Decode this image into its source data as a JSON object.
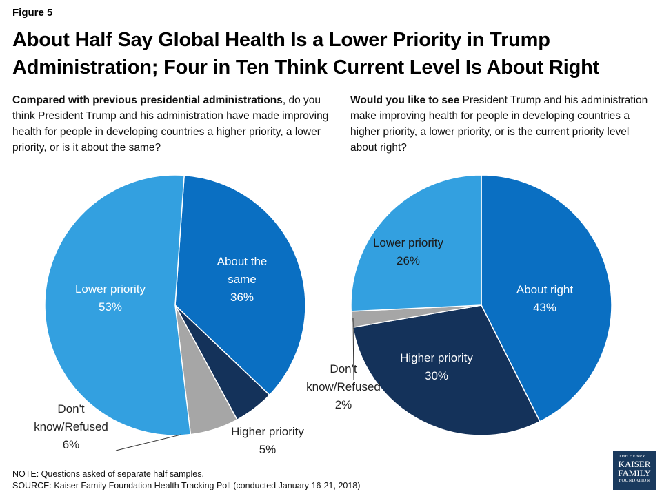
{
  "figure_label": "Figure 5",
  "title_line1": "About Half Say Global Health Is a Lower Priority in Trump",
  "title_line2": "Administration; Four in Ten Think Current Level Is About Right",
  "left_question": {
    "bold": "Compared with previous presidential administrations",
    "rest": ", do you think President Trump and his administration have made improving health for people in developing countries a higher priority, a lower priority, or is it about the same?"
  },
  "right_question": {
    "bold": "Would you like to see",
    "rest": " President Trump and his administration make improving health for people in developing countries a higher priority, a lower priority, or is the current priority level about right?"
  },
  "notes": {
    "note": "NOTE: Questions asked of separate half samples.",
    "source": "SOURCE: Kaiser Family Foundation Health Tracking Poll (conducted January 16-21, 2018)"
  },
  "logo": {
    "line1": "THE HENRY J.",
    "line2": "KAISER",
    "line3": "FAMILY",
    "line4": "FOUNDATION"
  },
  "colors": {
    "light_blue": "#33a0e0",
    "medium_blue": "#0a6fc2",
    "dark_navy": "#14325a",
    "gray": "#a6a6a6"
  },
  "chart_data": [
    {
      "type": "pie",
      "slices": [
        {
          "label": "About the same",
          "label_lines": [
            "About the",
            "same"
          ],
          "value_text": "36%",
          "value": 36,
          "color": "#0a6fc2"
        },
        {
          "label": "Higher priority",
          "label_lines": [
            "Higher priority"
          ],
          "value_text": "5%",
          "value": 5,
          "color": "#14325a"
        },
        {
          "label": "Don't know/Refused",
          "label_lines": [
            "Don't",
            "know/Refused"
          ],
          "value_text": "6%",
          "value": 6,
          "color": "#a6a6a6"
        },
        {
          "label": "Lower priority",
          "label_lines": [
            "Lower priority"
          ],
          "value_text": "53%",
          "value": 53,
          "color": "#33a0e0"
        }
      ]
    },
    {
      "type": "pie",
      "slices": [
        {
          "label": "About right",
          "label_lines": [
            "About right"
          ],
          "value_text": "43%",
          "value": 43,
          "color": "#0a6fc2"
        },
        {
          "label": "Higher priority",
          "label_lines": [
            "Higher priority"
          ],
          "value_text": "30%",
          "value": 30,
          "color": "#14325a"
        },
        {
          "label": "Don't know/Refused",
          "label_lines": [
            "Don't",
            "know/Refused"
          ],
          "value_text": "2%",
          "value": 2,
          "color": "#a6a6a6"
        },
        {
          "label": "Lower priority",
          "label_lines": [
            "Lower priority"
          ],
          "value_text": "26%",
          "value": 26,
          "color": "#33a0e0"
        }
      ]
    }
  ]
}
